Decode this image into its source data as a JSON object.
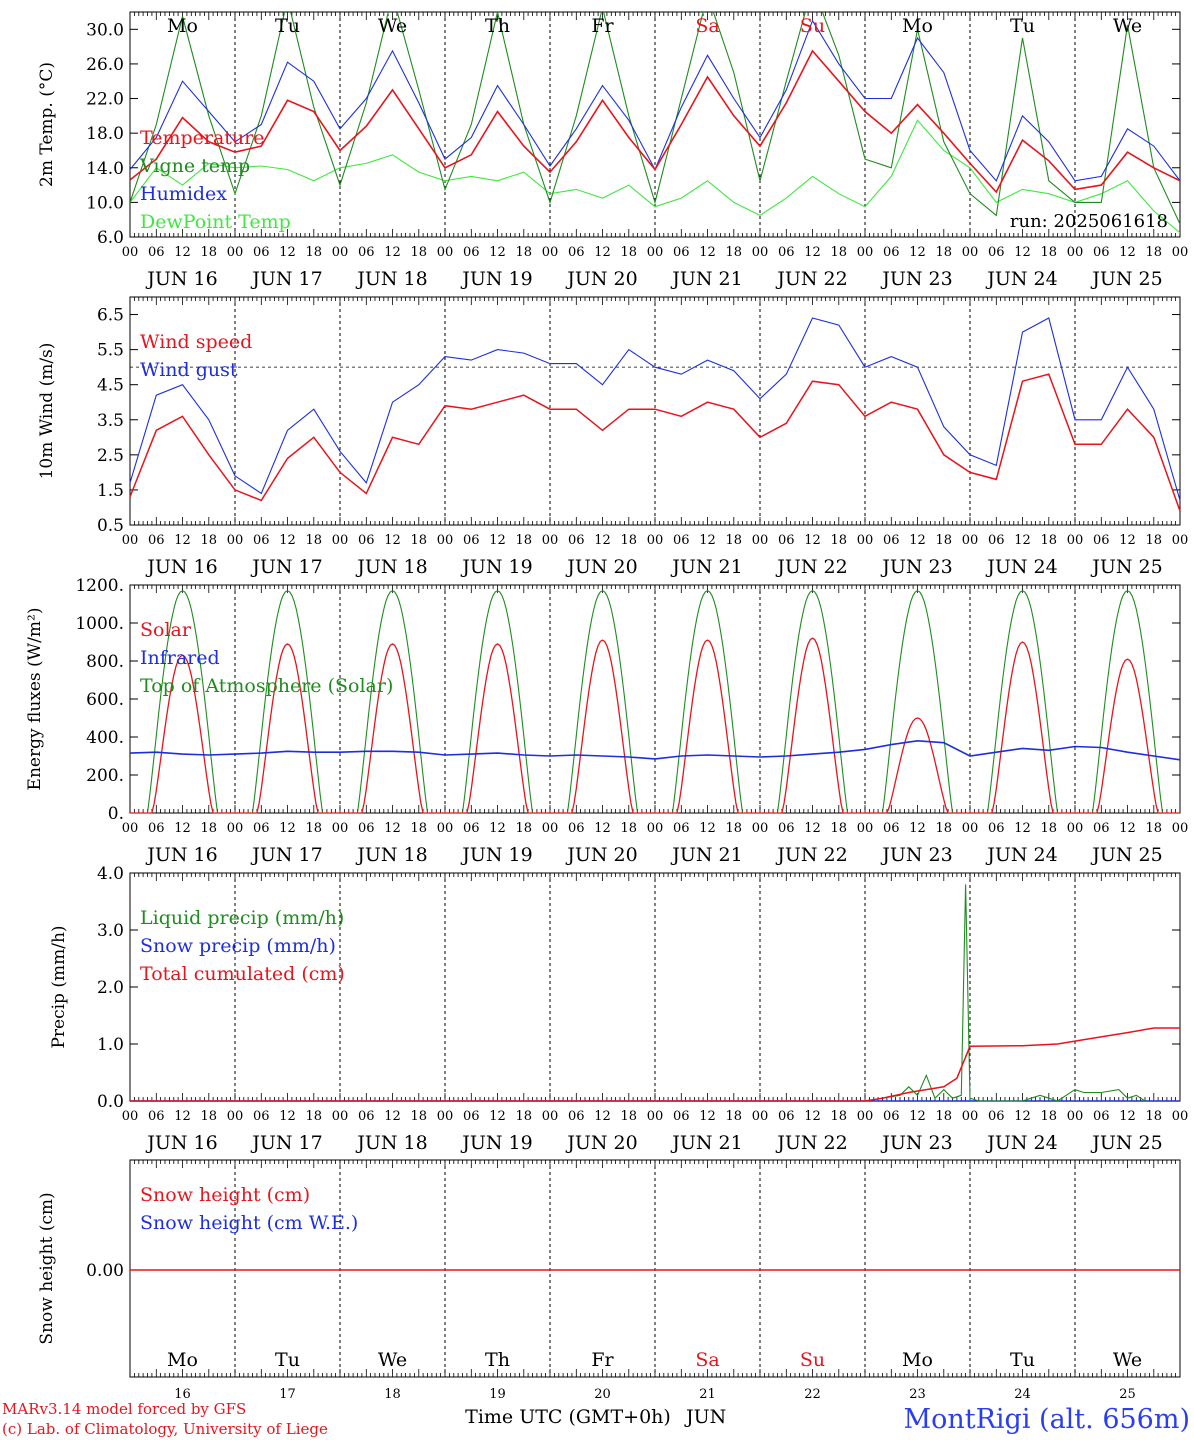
{
  "chart_data": [
    {
      "type": "line",
      "ylabel": "2m Temp. (°C)",
      "ylim": [
        6.0,
        32.0
      ],
      "yticks": [
        "6.0",
        "10.0",
        "14.0",
        "18.0",
        "22.0",
        "26.0",
        "30.0"
      ],
      "run_label": "run: 2025061618",
      "day_titles": [
        "Mo",
        "Tu",
        "We",
        "Th",
        "Fr",
        "Sa",
        "Su",
        "Mo",
        "Tu",
        "We"
      ],
      "day_title_colors": [
        "#000000",
        "#000000",
        "#000000",
        "#000000",
        "#000000",
        "#e8141c",
        "#e8141c",
        "#000000",
        "#000000",
        "#000000"
      ],
      "hour_labels": [
        "00",
        "06",
        "12",
        "18"
      ],
      "date_labels": [
        "JUN 16",
        "JUN 17",
        "JUN 18",
        "JUN 19",
        "JUN 20",
        "JUN 21",
        "JUN 22",
        "JUN 23",
        "JUN 24",
        "JUN 25"
      ],
      "x": [
        0,
        6,
        12,
        18,
        24,
        30,
        36,
        42,
        48,
        54,
        60,
        66,
        72,
        78,
        84,
        90,
        96,
        102,
        108,
        114,
        120,
        126,
        132,
        138,
        144,
        150,
        156,
        162,
        168,
        174,
        180,
        186,
        192,
        198,
        204,
        210,
        216,
        222,
        228,
        234,
        240
      ],
      "series": [
        {
          "name": "Temperature",
          "color": "#e8141c",
          "values": [
            12.6,
            15.0,
            19.8,
            17.0,
            15.8,
            16.5,
            21.8,
            20.5,
            16.0,
            18.8,
            23.0,
            18.5,
            14.0,
            15.5,
            20.5,
            16.5,
            13.5,
            17.0,
            21.8,
            17.5,
            13.8,
            19.0,
            24.5,
            20.0,
            16.5,
            21.5,
            27.5,
            24.0,
            20.5,
            18.0,
            21.3,
            18.0,
            14.5,
            11.2,
            17.2,
            14.8,
            11.5,
            12.0,
            15.8,
            14.0,
            12.5
          ]
        },
        {
          "name": "Vigne temp",
          "color": "#1e8c1e",
          "values": [
            10.0,
            19.0,
            31.5,
            20.0,
            11.0,
            20.0,
            33.5,
            21.0,
            12.0,
            21.5,
            34.0,
            23.0,
            11.5,
            19.0,
            32.0,
            19.0,
            10.0,
            20.0,
            32.5,
            20.0,
            10.0,
            22.0,
            34.0,
            25.0,
            12.5,
            24.0,
            35.0,
            27.0,
            15.0,
            14.0,
            30.0,
            17.0,
            11.0,
            8.5,
            29.0,
            12.5,
            10.0,
            10.0,
            30.5,
            14.0,
            7.5
          ]
        },
        {
          "name": "Humidex",
          "color": "#1c2ee0",
          "values": [
            13.8,
            17.5,
            24.0,
            20.5,
            17.0,
            19.0,
            26.2,
            24.0,
            18.5,
            22.0,
            27.5,
            21.5,
            15.0,
            17.5,
            23.5,
            19.0,
            14.2,
            18.5,
            23.5,
            19.5,
            13.8,
            21.0,
            27.0,
            22.0,
            17.5,
            23.0,
            31.0,
            26.0,
            22.0,
            22.0,
            29.0,
            25.0,
            16.0,
            12.5,
            20.0,
            17.0,
            12.5,
            13.0,
            18.5,
            16.5,
            12.5
          ]
        },
        {
          "name": "DewPoint Temp",
          "color": "#3ee83e",
          "values": [
            10.0,
            14.0,
            12.0,
            14.5,
            14.0,
            14.2,
            13.8,
            12.5,
            14.0,
            14.5,
            15.5,
            13.5,
            12.5,
            13.0,
            12.5,
            13.5,
            11.0,
            11.5,
            10.5,
            12.0,
            9.5,
            10.5,
            12.5,
            10.0,
            8.5,
            10.5,
            13.0,
            11.0,
            9.5,
            13.0,
            19.5,
            16.0,
            14.0,
            10.0,
            11.5,
            11.0,
            10.0,
            11.0,
            12.5,
            9.0,
            6.5
          ]
        }
      ]
    },
    {
      "type": "line",
      "ylabel": "10m Wind (m/s)",
      "ylim": [
        0.5,
        7.0
      ],
      "yticks": [
        "0.5",
        "1.5",
        "2.5",
        "3.5",
        "4.5",
        "5.5",
        "6.5"
      ],
      "reference_line": 5.0,
      "hour_labels": [
        "00",
        "06",
        "12",
        "18"
      ],
      "date_labels": [
        "JUN 16",
        "JUN 17",
        "JUN 18",
        "JUN 19",
        "JUN 20",
        "JUN 21",
        "JUN 22",
        "JUN 23",
        "JUN 24",
        "JUN 25"
      ],
      "x": [
        0,
        6,
        12,
        18,
        24,
        30,
        36,
        42,
        48,
        54,
        60,
        66,
        72,
        78,
        84,
        90,
        96,
        102,
        108,
        114,
        120,
        126,
        132,
        138,
        144,
        150,
        156,
        162,
        168,
        174,
        180,
        186,
        192,
        198,
        204,
        210,
        216,
        222,
        228,
        234,
        240
      ],
      "series": [
        {
          "name": "Wind speed",
          "color": "#e8141c",
          "values": [
            1.3,
            3.2,
            3.6,
            2.5,
            1.5,
            1.2,
            2.4,
            3.0,
            2.0,
            1.4,
            3.0,
            2.8,
            3.9,
            3.8,
            4.0,
            4.2,
            3.8,
            3.8,
            3.2,
            3.8,
            3.8,
            3.6,
            4.0,
            3.8,
            3.0,
            3.4,
            4.6,
            4.5,
            3.6,
            4.0,
            3.8,
            2.5,
            2.0,
            1.8,
            4.6,
            4.8,
            2.8,
            2.8,
            3.8,
            3.0,
            0.9
          ]
        },
        {
          "name": "Wind gust",
          "color": "#1c2ee0",
          "values": [
            1.7,
            4.2,
            4.5,
            3.5,
            1.9,
            1.4,
            3.2,
            3.8,
            2.6,
            1.7,
            4.0,
            4.5,
            5.3,
            5.2,
            5.5,
            5.4,
            5.1,
            5.1,
            4.5,
            5.5,
            5.0,
            4.8,
            5.2,
            4.9,
            4.1,
            4.8,
            6.4,
            6.2,
            5.0,
            5.3,
            5.0,
            3.3,
            2.5,
            2.2,
            6.0,
            6.4,
            3.5,
            3.5,
            5.0,
            3.8,
            1.2
          ]
        }
      ]
    },
    {
      "type": "line",
      "ylabel": "Energy fluxes (W/m²)",
      "ylim": [
        0,
        1200
      ],
      "yticks": [
        "0.",
        "200.",
        "400.",
        "600.",
        "800.",
        "1000.",
        "1200."
      ],
      "hour_labels": [
        "00",
        "06",
        "12",
        "18"
      ],
      "date_labels": [
        "JUN 16",
        "JUN 17",
        "JUN 18",
        "JUN 19",
        "JUN 20",
        "JUN 21",
        "JUN 22",
        "JUN 23",
        "JUN 24",
        "JUN 25"
      ],
      "solar_peaks": [
        830,
        890,
        890,
        890,
        910,
        910,
        920,
        500,
        900,
        810
      ],
      "toa_peak": 1170,
      "infrared_values": [
        315,
        320,
        310,
        305,
        310,
        315,
        325,
        320,
        320,
        325,
        325,
        320,
        305,
        310,
        315,
        305,
        300,
        305,
        300,
        295,
        285,
        300,
        305,
        300,
        295,
        300,
        310,
        320,
        335,
        360,
        380,
        370,
        300,
        320,
        340,
        330,
        350,
        345,
        320,
        300,
        280
      ],
      "series": [
        {
          "name": "Solar",
          "color": "#e8141c"
        },
        {
          "name": "Infrared",
          "color": "#1c2ee0"
        },
        {
          "name": "Top of Atmosphere (Solar)",
          "color": "#1e8c1e"
        }
      ]
    },
    {
      "type": "line",
      "ylabel": "Precip (mm/h)",
      "ylim": [
        0,
        4.0
      ],
      "yticks": [
        "0.0",
        "1.0",
        "2.0",
        "3.0",
        "4.0"
      ],
      "hour_labels": [
        "00",
        "06",
        "12",
        "18"
      ],
      "date_labels": [
        "JUN 16",
        "JUN 17",
        "JUN 18",
        "JUN 19",
        "JUN 20",
        "JUN 21",
        "JUN 22",
        "JUN 23",
        "JUN 24",
        "JUN 25"
      ],
      "liquid_points": [
        [
          168,
          0
        ],
        [
          172,
          0.05
        ],
        [
          176,
          0.1
        ],
        [
          178,
          0.25
        ],
        [
          180,
          0.1
        ],
        [
          182,
          0.45
        ],
        [
          184,
          0.05
        ],
        [
          186,
          0.2
        ],
        [
          188,
          0.05
        ],
        [
          190,
          0.1
        ],
        [
          191,
          3.8
        ],
        [
          192,
          0.05
        ],
        [
          194,
          0
        ],
        [
          204,
          0
        ],
        [
          206,
          0.05
        ],
        [
          208,
          0.1
        ],
        [
          210,
          0.05
        ],
        [
          212,
          0
        ],
        [
          216,
          0.2
        ],
        [
          218,
          0.15
        ],
        [
          222,
          0.15
        ],
        [
          226,
          0.2
        ],
        [
          228,
          0.05
        ],
        [
          230,
          0.1
        ],
        [
          232,
          0
        ]
      ],
      "cumulated_points": [
        [
          0,
          0
        ],
        [
          168,
          0
        ],
        [
          172,
          0.05
        ],
        [
          178,
          0.15
        ],
        [
          186,
          0.25
        ],
        [
          189,
          0.4
        ],
        [
          192,
          0.96
        ],
        [
          204,
          0.97
        ],
        [
          212,
          1.0
        ],
        [
          220,
          1.1
        ],
        [
          228,
          1.2
        ],
        [
          234,
          1.28
        ],
        [
          240,
          1.28
        ]
      ],
      "series": [
        {
          "name": "Liquid precip (mm/h)",
          "color": "#1e8c1e"
        },
        {
          "name": "Snow precip (mm/h)",
          "color": "#1c2ee0"
        },
        {
          "name": "Total cumulated (cm)",
          "color": "#e8141c"
        }
      ]
    },
    {
      "type": "line",
      "ylabel": "Snow height (cm)",
      "yticks": [
        "0.00"
      ],
      "day_names": [
        "Mo",
        "Tu",
        "We",
        "Th",
        "Fr",
        "Sa",
        "Su",
        "Mo",
        "Tu",
        "We"
      ],
      "day_name_colors": [
        "#000000",
        "#000000",
        "#000000",
        "#000000",
        "#000000",
        "#e8141c",
        "#e8141c",
        "#000000",
        "#000000",
        "#000000"
      ],
      "day_numbers": [
        "16",
        "17",
        "18",
        "19",
        "20",
        "21",
        "22",
        "23",
        "24",
        "25"
      ],
      "series": [
        {
          "name": "Snow height (cm)",
          "color": "#e8141c",
          "values": [
            0,
            0
          ]
        },
        {
          "name": "Snow height (cm W.E.)",
          "color": "#1c2ee0",
          "values": [
            0,
            0
          ]
        }
      ]
    }
  ],
  "footer": {
    "line1": "MARv3.14 model forced by GFS",
    "line2": "(c) Lab. of Climatology, University of Liege",
    "xlabel": "Time UTC (GMT+0h)",
    "month": "JUN",
    "station": "MontRigi (alt. 656m)"
  }
}
